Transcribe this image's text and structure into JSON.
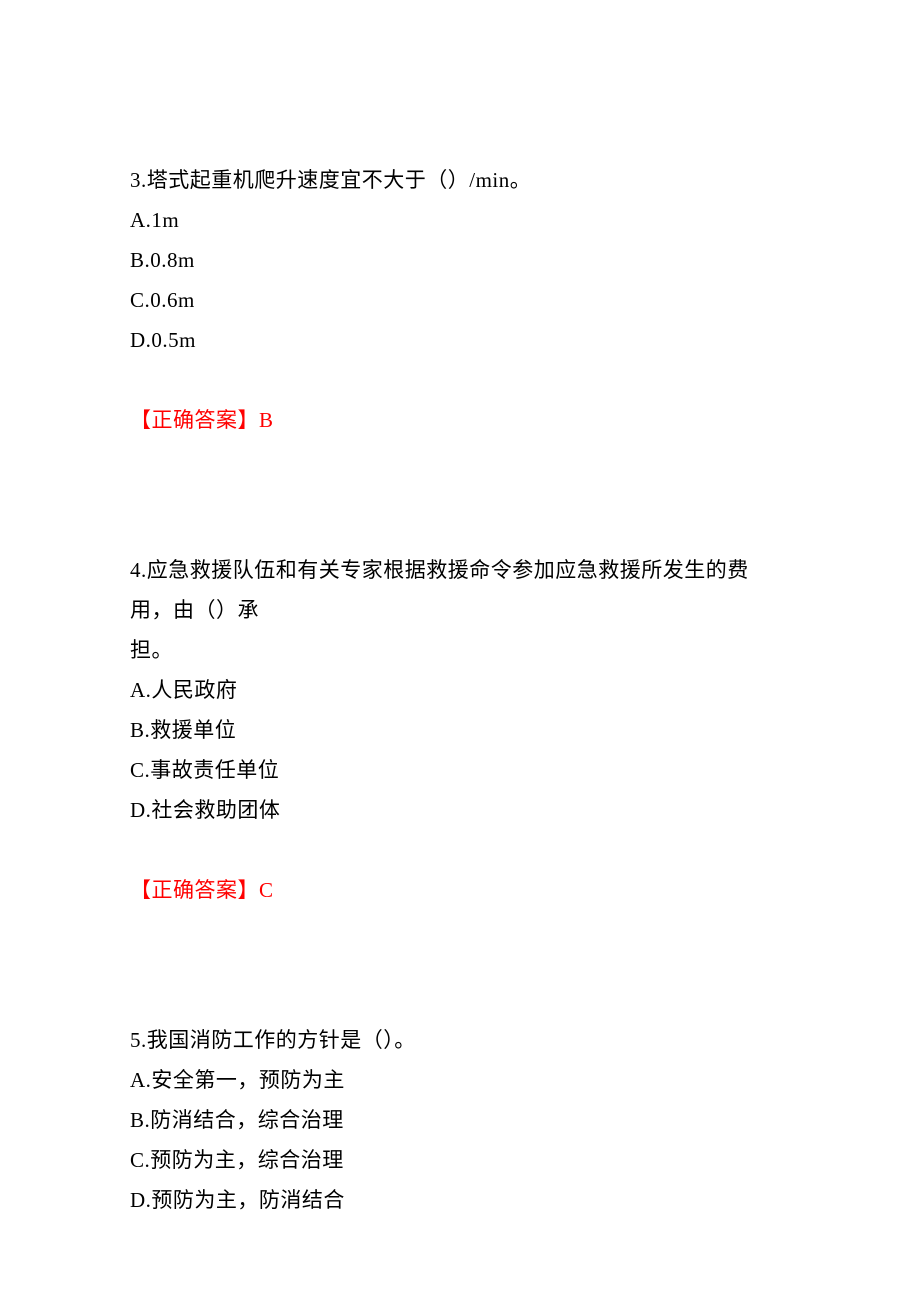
{
  "fontsize": 21,
  "line_height": 40,
  "text_color": "#000000",
  "answer_color": "#ff0000",
  "background_color": "#ffffff",
  "questions": [
    {
      "stem": "3.塔式起重机爬升速度宜不大于（）/min。",
      "options": {
        "A": "A.1m",
        "B": "B.0.8m",
        "C": "C.0.6m",
        "D": "D.0.5m"
      },
      "answer": "【正确答案】B"
    },
    {
      "stem_1": "4.应急救援队伍和有关专家根据救援命令参加应急救援所发生的费用，由（）承",
      "stem_2": "担。",
      "options": {
        "A": "A.人民政府",
        "B": "B.救援单位",
        "C": "C.事故责任单位",
        "D": "D.社会救助团体"
      },
      "answer": "【正确答案】C"
    },
    {
      "stem": "5.我国消防工作的方针是（）。",
      "options": {
        "A": "A.安全第一，预防为主",
        "B": "B.防消结合，综合治理",
        "C": "C.预防为主，综合治理",
        "D": "D.预防为主，防消结合"
      }
    }
  ]
}
